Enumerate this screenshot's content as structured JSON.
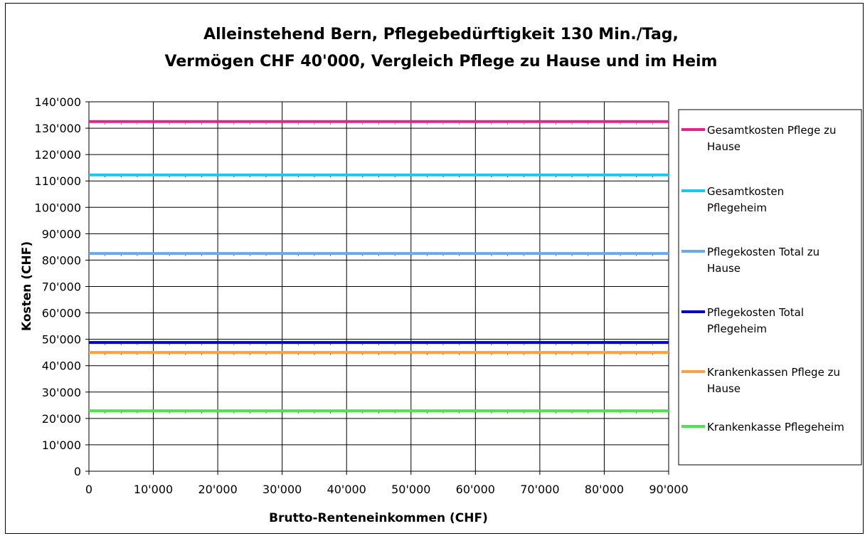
{
  "chart_data": {
    "type": "line",
    "title_lines": [
      "Alleinstehend Bern, Pflegebedürftigkeit 130 Min./Tag,",
      "Vermögen CHF 40'000, Vergleich Pflege zu Hause und im Heim"
    ],
    "xlabel": "Brutto-Renteneinkommen (CHF)",
    "ylabel": "Kosten (CHF)",
    "xlim": [
      0,
      90000
    ],
    "ylim": [
      0,
      140000
    ],
    "grid": true,
    "legend_position": "right",
    "x_ticks": [
      "0",
      "10'000",
      "20'000",
      "30'000",
      "40'000",
      "50'000",
      "60'000",
      "70'000",
      "80'000",
      "90'000"
    ],
    "y_ticks": [
      "0",
      "10'000",
      "20'000",
      "30'000",
      "40'000",
      "50'000",
      "60'000",
      "70'000",
      "80'000",
      "90'000",
      "100'000",
      "110'000",
      "120'000",
      "130'000",
      "140'000"
    ],
    "x": [
      0,
      90000
    ],
    "series": [
      {
        "name": "Gesamtkosten Pflege zu Hause",
        "legend_lines": [
          "Gesamtkosten Pflege zu",
          "Hause"
        ],
        "color": "#e8208a",
        "values": [
          132500,
          132500
        ]
      },
      {
        "name": "Gesamtkosten Pflegeheim",
        "legend_lines": [
          "Gesamtkosten",
          "Pflegeheim"
        ],
        "color": "#18c8f0",
        "values": [
          112300,
          112300
        ]
      },
      {
        "name": "Pflegekosten Total zu Hause",
        "legend_lines": [
          "Pflegekosten Total zu",
          "Hause"
        ],
        "color": "#6aa8f0",
        "values": [
          82500,
          82500
        ]
      },
      {
        "name": "Pflegekosten Total Pflegeheim",
        "legend_lines": [
          "Pflegekosten Total",
          "Pflegeheim"
        ],
        "color": "#0000c8",
        "values": [
          48800,
          48800
        ]
      },
      {
        "name": "Krankenkassen Pflege zu Hause",
        "legend_lines": [
          "Krankenkassen Pflege zu",
          "Hause"
        ],
        "color": "#ffa040",
        "values": [
          45000,
          45000
        ]
      },
      {
        "name": "Krankenkasse Pflegeheim",
        "legend_lines": [
          "Krankenkasse Pflegeheim"
        ],
        "color": "#50e050",
        "values": [
          22900,
          22900
        ]
      }
    ]
  }
}
